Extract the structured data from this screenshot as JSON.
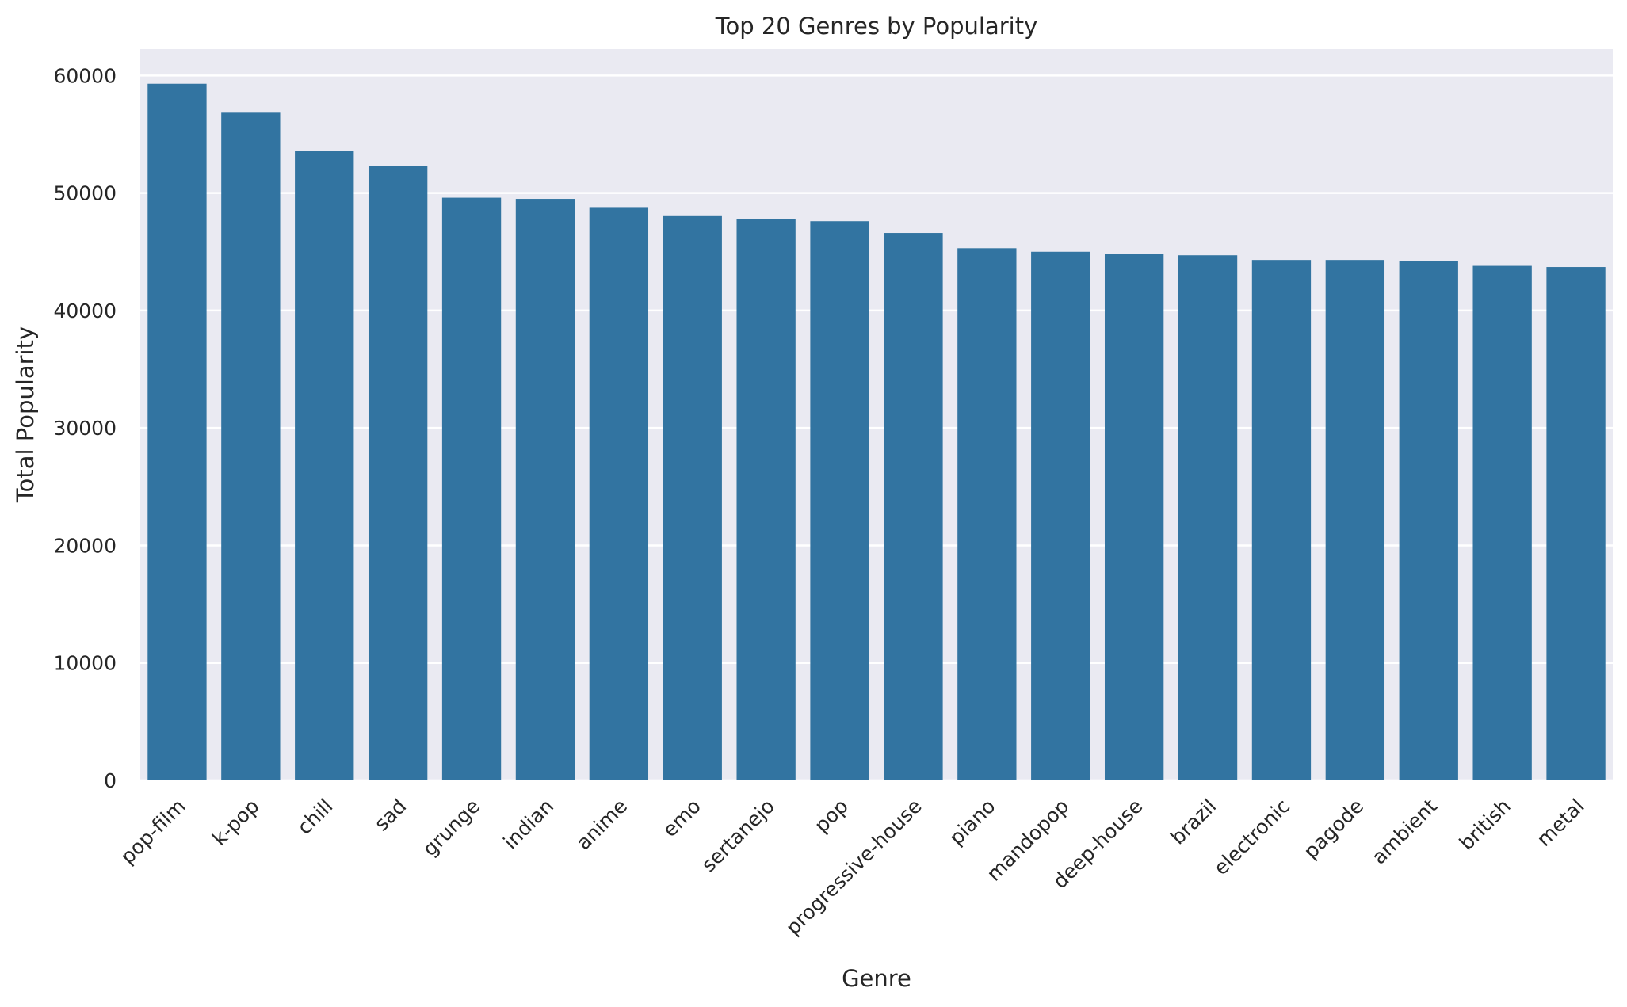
{
  "chart_data": {
    "type": "bar",
    "title": "Top 20 Genres by Popularity",
    "xlabel": "Genre",
    "ylabel": "Total Popularity",
    "categories": [
      "pop-film",
      "k-pop",
      "chill",
      "sad",
      "grunge",
      "indian",
      "anime",
      "emo",
      "sertanejo",
      "pop",
      "progressive-house",
      "piano",
      "mandopop",
      "deep-house",
      "brazil",
      "electronic",
      "pagode",
      "ambient",
      "british",
      "metal"
    ],
    "values": [
      59300,
      56900,
      53600,
      52300,
      49600,
      49500,
      48800,
      48100,
      47800,
      47600,
      46600,
      45300,
      45000,
      44800,
      44700,
      44300,
      44300,
      44200,
      43800,
      43700
    ],
    "yticks": [
      0,
      10000,
      20000,
      30000,
      40000,
      50000,
      60000
    ],
    "ylim": [
      0,
      62250
    ],
    "grid": true,
    "background": "#eaeaf2",
    "bar_color": "#3274a1",
    "grid_color": "#ffffff"
  }
}
